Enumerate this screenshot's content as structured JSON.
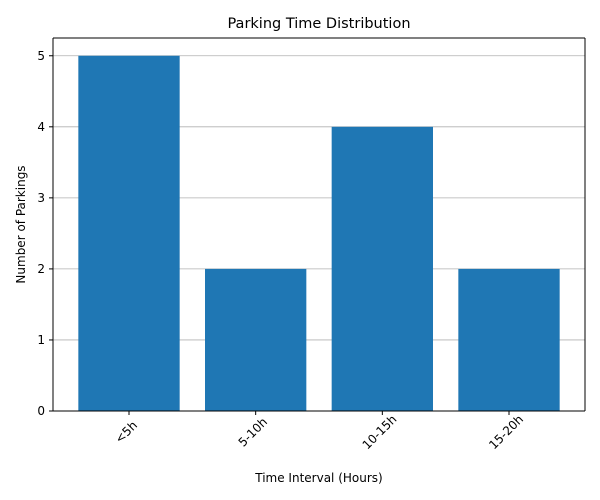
{
  "chart_data": {
    "type": "bar",
    "title": "Parking Time Distribution",
    "xlabel": "Time Interval (Hours)",
    "ylabel": "Number of Parkings",
    "categories": [
      "<5h",
      "5-10h",
      "10-15h",
      "15-20h"
    ],
    "values": [
      5,
      2,
      4,
      2
    ],
    "ylim": [
      0,
      5.25
    ],
    "yticks": [
      0,
      1,
      2,
      3,
      4,
      5
    ],
    "grid": "y",
    "x_tick_rotation": 45,
    "bar_color": "#1f77b4",
    "legend": "none"
  }
}
